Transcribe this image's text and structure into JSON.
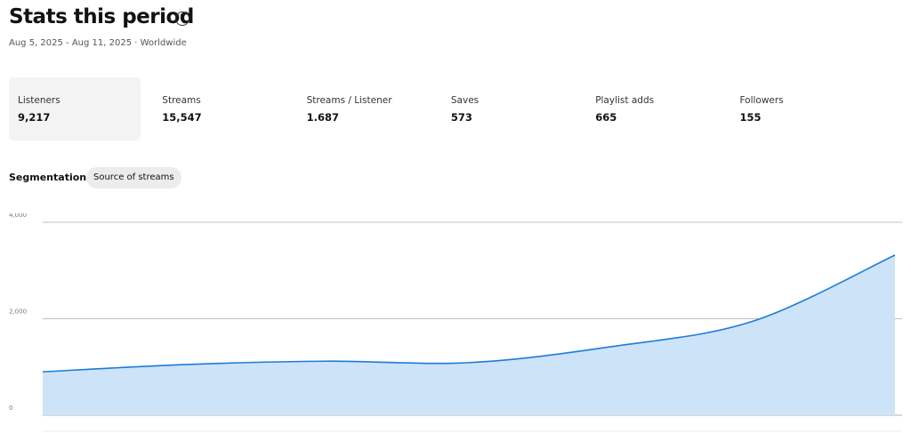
{
  "header": {
    "title": "Stats this period",
    "subtitle": "Aug 5, 2025 - Aug 11, 2025 · Worldwide"
  },
  "stats": [
    {
      "label": "Listeners",
      "value": "9,217"
    },
    {
      "label": "Streams",
      "value": "15,547"
    },
    {
      "label": "Streams / Listener",
      "value": "1.687"
    },
    {
      "label": "Saves",
      "value": "573"
    },
    {
      "label": "Playlist adds",
      "value": "665"
    },
    {
      "label": "Followers",
      "value": "155"
    }
  ],
  "segmentation": {
    "label": "Segmentation",
    "chip": "Source of streams"
  },
  "chart_data": {
    "type": "area",
    "categories": [
      null,
      null,
      null,
      null,
      null,
      null,
      null
    ],
    "series": [
      {
        "name": "Listeners",
        "color": "#1e7bd6",
        "values": [
          900,
          1050,
          1120,
          1090,
          1420,
          1950,
          3320
        ]
      }
    ],
    "ylim": [
      0,
      4000
    ],
    "yticks": [
      0,
      {
        "value": 2000,
        "label": "2,000"
      },
      {
        "value": 4000,
        "label": "4,000"
      }
    ],
    "grid": true
  }
}
